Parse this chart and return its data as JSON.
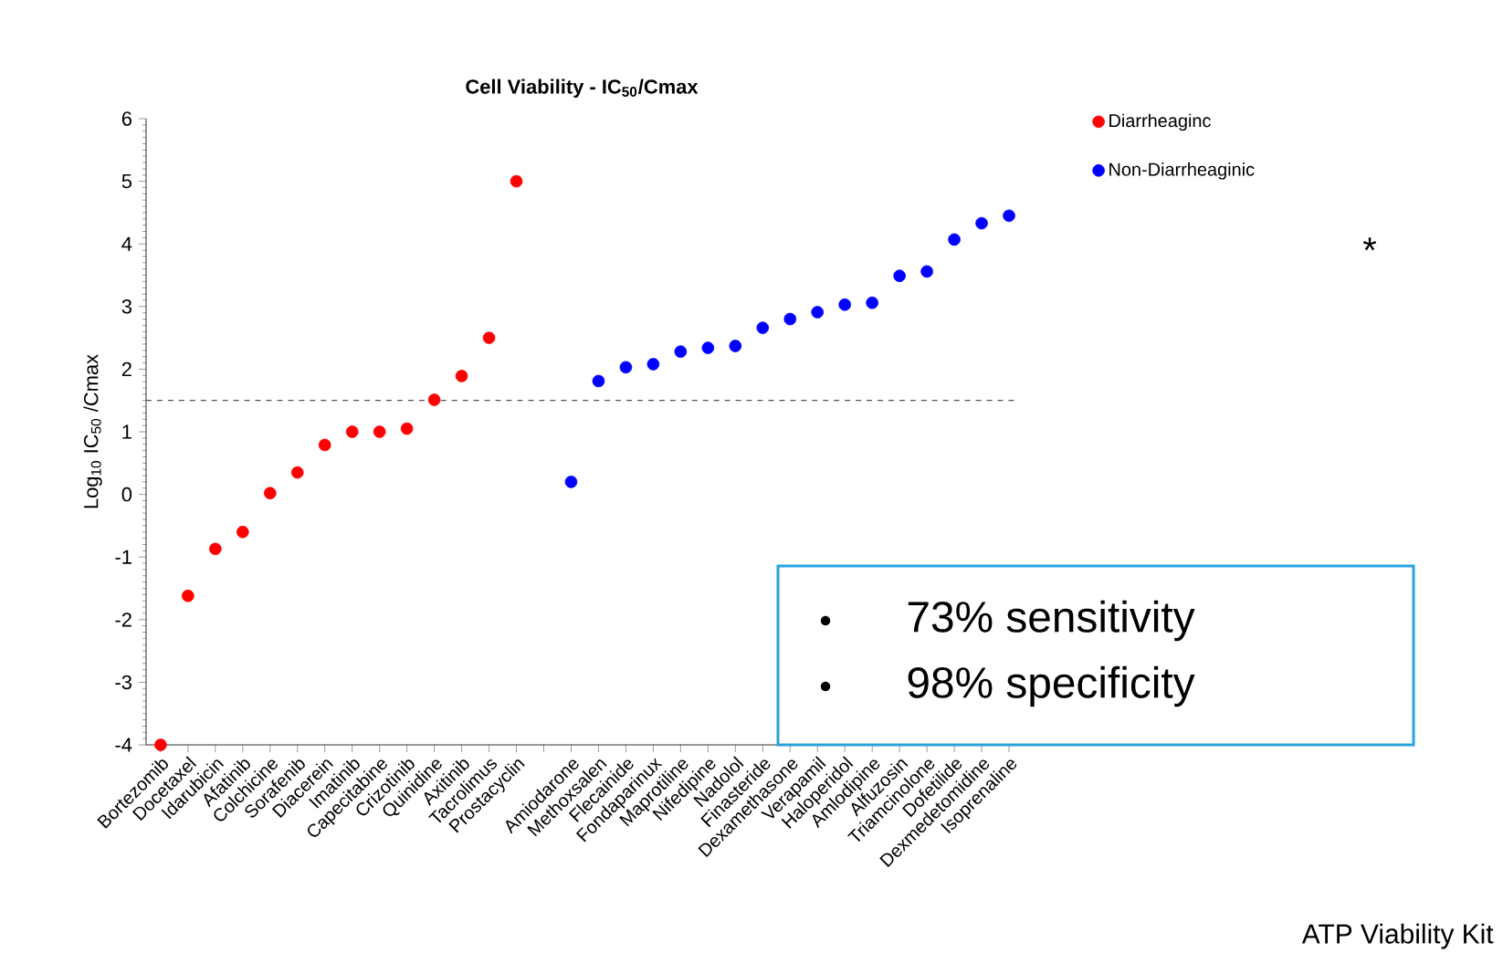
{
  "chart_data": {
    "type": "scatter",
    "title": "Cell Viability - IC$_{50}$/Cmax",
    "ylabel": "Log$_{10}$ IC$_{50}$ /Cmax",
    "categories": [
      "Bortezomib",
      "Docetaxel",
      "Idarubicin",
      "Afatinib",
      "Colchicine",
      "Sorafenib",
      "Diacerein",
      "Imatinib",
      "Capecitabine",
      "Crizotinib",
      "Quinidine",
      "Axitinib",
      "Tacrolimus",
      "Prostacyclin",
      null,
      "Amiodarone",
      "Methoxsalen",
      "Flecainide",
      "Fondaparinux",
      "Maprotiline",
      "Nifedipine",
      "Nadolol",
      "Finasteride",
      "Dexamethasone",
      "Verapamil",
      "Haloperidol",
      "Amlodipine",
      "Alfuzosin",
      "Triamcinolone",
      "Dofetilide",
      "Dexmedetomidine",
      "Isoprenaline"
    ],
    "series": [
      {
        "name": "Diarrheaginc",
        "color": "#ff0000",
        "values": [
          -4.0,
          -1.62,
          -0.87,
          -0.6,
          0.02,
          0.35,
          0.79,
          1.0,
          1.0,
          1.05,
          1.51,
          1.89,
          2.5,
          5.0,
          null,
          null,
          null,
          null,
          null,
          null,
          null,
          null,
          null,
          null,
          null,
          null,
          null,
          null,
          null,
          null,
          null,
          null
        ]
      },
      {
        "name": "Non-Diarrheaginic",
        "color": "#0000ff",
        "values": [
          null,
          null,
          null,
          null,
          null,
          null,
          null,
          null,
          null,
          null,
          null,
          null,
          null,
          null,
          null,
          0.2,
          1.81,
          2.03,
          2.08,
          2.28,
          2.34,
          2.37,
          2.66,
          2.8,
          2.91,
          3.03,
          3.06,
          3.49,
          3.56,
          4.07,
          4.33,
          4.45
        ]
      }
    ],
    "ylim": [
      -4,
      6
    ],
    "yticks": [
      -4,
      -3,
      -2,
      -1,
      0,
      1,
      2,
      3,
      4,
      5,
      6
    ],
    "marker": "circle",
    "legend": "top right",
    "ref_lines": [
      {
        "axis": "y",
        "value": 1.5,
        "line_style": "dashed",
        "color": "#555555"
      }
    ],
    "annotations": [
      "*",
      "73% sensitivity",
      "98% specificity",
      "ATP Viability Kit"
    ]
  }
}
